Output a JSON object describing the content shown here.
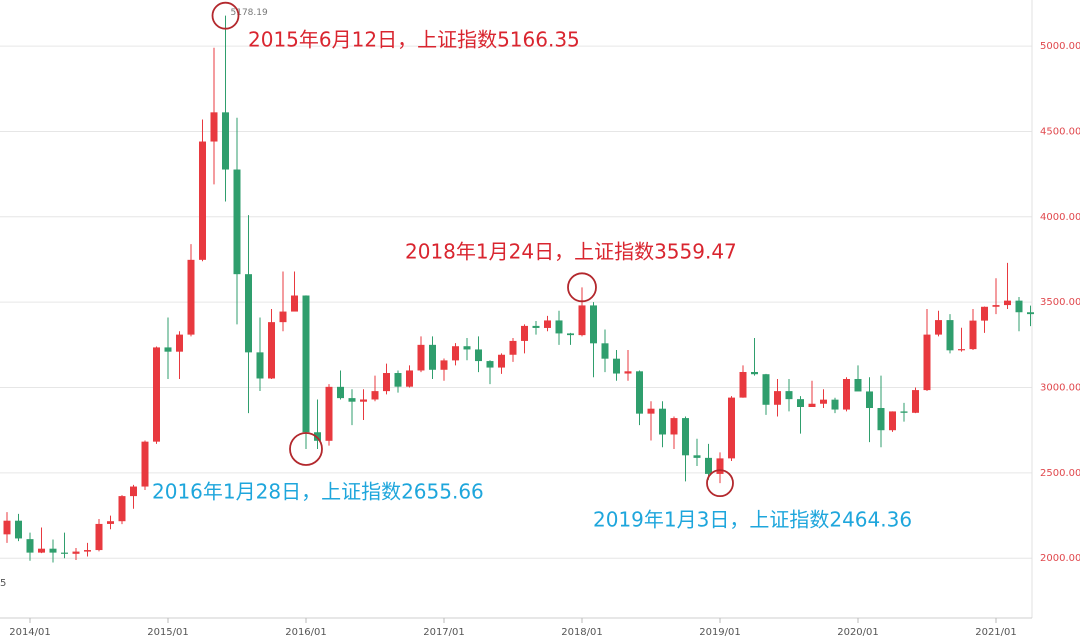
{
  "chart_data": {
    "type": "candlestick",
    "categories": [
      null,
      null,
      "2014/01",
      null,
      null,
      null,
      null,
      null,
      null,
      null,
      null,
      null,
      null,
      null,
      "2015/01",
      null,
      null,
      null,
      null,
      null,
      null,
      null,
      null,
      null,
      null,
      null,
      "2016/01",
      null,
      null,
      null,
      null,
      null,
      null,
      null,
      null,
      null,
      null,
      null,
      "2017/01",
      null,
      null,
      null,
      null,
      null,
      null,
      null,
      null,
      null,
      null,
      null,
      "2018/01",
      null,
      null,
      null,
      null,
      null,
      null,
      null,
      null,
      null,
      null,
      null,
      "2019/01",
      null,
      null,
      null,
      null,
      null,
      null,
      null,
      null,
      null,
      null,
      null,
      "2020/01",
      null,
      null,
      null,
      null,
      null,
      null,
      null,
      null,
      null,
      null,
      null,
      "2021/01",
      null,
      null,
      null
    ],
    "open": [
      2140,
      2220,
      2112,
      2033,
      2056,
      2033,
      2026,
      2039,
      2048,
      2201,
      2217,
      2364,
      2420,
      2683,
      3235,
      3210,
      3310,
      3748,
      4441,
      4612,
      4277,
      3664,
      3206,
      3053,
      3383,
      3445,
      3539,
      2738,
      2688,
      3004,
      2938,
      2917,
      2930,
      2979,
      3085,
      3005,
      3100,
      3250,
      3104,
      3159,
      3242,
      3223,
      3155,
      3117,
      3192,
      3273,
      3361,
      3349,
      3393,
      3317,
      3307,
      3481,
      3259,
      3169,
      3082,
      3095,
      2847,
      2876,
      2725,
      2821,
      2603,
      2588,
      2494,
      2585,
      2941,
      3091,
      3078,
      2899,
      2979,
      2932,
      2886,
      2905,
      2929,
      2871,
      3050,
      2977,
      2880,
      2750,
      2860,
      2852,
      2985,
      3310,
      3395,
      3218,
      3225,
      3392,
      3473,
      3483,
      3509,
      3441
    ],
    "high": [
      2270,
      2260,
      2150,
      2180,
      2110,
      2150,
      2060,
      2090,
      2230,
      2250,
      2370,
      2430,
      2690,
      3240,
      3410,
      3330,
      3840,
      4570,
      4990,
      5178.19,
      4580,
      4010,
      3410,
      3460,
      3680,
      3680,
      3540,
      2930,
      3020,
      3100,
      2990,
      2990,
      3070,
      3140,
      3100,
      3130,
      3300,
      3300,
      3170,
      3260,
      3290,
      3300,
      3160,
      3200,
      3290,
      3370,
      3390,
      3420,
      3450,
      3320,
      3587,
      3500,
      3340,
      3220,
      3220,
      3100,
      2920,
      2920,
      2830,
      2830,
      2700,
      2670,
      2620,
      2950,
      3130,
      3290,
      3080,
      3050,
      3050,
      2950,
      3040,
      2990,
      2940,
      3060,
      3130,
      3060,
      3070,
      2860,
      2910,
      3000,
      3460,
      3450,
      3430,
      3350,
      3460,
      3475,
      3640,
      3730,
      3530,
      3480
    ],
    "low": [
      2090,
      2100,
      1985,
      2030,
      1975,
      2000,
      1990,
      2010,
      2040,
      2170,
      2200,
      2290,
      2400,
      2670,
      3050,
      3050,
      3300,
      3740,
      4190,
      4090,
      3370,
      2850,
      2980,
      3050,
      3330,
      3450,
      2640,
      2640,
      2660,
      2930,
      2780,
      2810,
      2920,
      2960,
      2970,
      3000,
      3090,
      3050,
      3040,
      3130,
      3160,
      3090,
      3020,
      3080,
      3150,
      3200,
      3310,
      3330,
      3250,
      3250,
      3300,
      3060,
      3090,
      3040,
      3040,
      2780,
      2690,
      2650,
      2640,
      2450,
      2540,
      2460,
      2440,
      2570,
      2940,
      3070,
      2840,
      2830,
      2860,
      2730,
      2890,
      2880,
      2850,
      2860,
      2980,
      2680,
      2650,
      2740,
      2800,
      2850,
      2980,
      3300,
      3200,
      3210,
      3220,
      3320,
      3430,
      3460,
      3330,
      3360
    ],
    "close": [
      2220,
      2116,
      2033,
      2056,
      2033,
      2026,
      2039,
      2048,
      2201,
      2217,
      2364,
      2420,
      2683,
      3235,
      3210,
      3310,
      3748,
      4441,
      4612,
      4277,
      3664,
      3206,
      3053,
      3383,
      3445,
      3539,
      2738,
      2688,
      3004,
      2938,
      2917,
      2930,
      2979,
      3085,
      3005,
      3100,
      3250,
      3104,
      3159,
      3242,
      3223,
      3155,
      3117,
      3192,
      3273,
      3361,
      3349,
      3393,
      3317,
      3307,
      3481,
      3259,
      3169,
      3082,
      3095,
      2847,
      2876,
      2725,
      2821,
      2603,
      2588,
      2494,
      2585,
      2941,
      3091,
      3078,
      2899,
      2979,
      2932,
      2886,
      2905,
      2929,
      2871,
      3050,
      2977,
      2880,
      2750,
      2860,
      2852,
      2985,
      3310,
      3395,
      3218,
      3225,
      3392,
      3473,
      3483,
      3509,
      3441,
      3430
    ],
    "up_color": "#e8393f",
    "down_color": "#2f9e6d",
    "ylim": [
      1650,
      5270
    ],
    "yticks": [
      {
        "value": 2000,
        "label": "2000.00"
      },
      {
        "value": 2500,
        "label": "2500.00"
      },
      {
        "value": 3000,
        "label": "3000.00"
      },
      {
        "value": 3500,
        "label": "3500.00"
      },
      {
        "value": 4000,
        "label": "4000.00"
      },
      {
        "value": 4500,
        "label": "4500.00"
      },
      {
        "value": 5000,
        "label": "5000.00"
      }
    ],
    "grid": true,
    "peak_label": "5178.19",
    "edge_label": "5",
    "annotations": [
      {
        "text": "2015年6月12日，上证指数5166.35",
        "color": "#d9252f"
      },
      {
        "text": "2018年1月24日，上证指数3559.47",
        "color": "#d9252f"
      },
      {
        "text": "2016年1月28日，上证指数2655.66",
        "color": "#1ea6dc"
      },
      {
        "text": "2019年1月3日，上证指数2464.36",
        "color": "#1ea6dc"
      }
    ]
  }
}
